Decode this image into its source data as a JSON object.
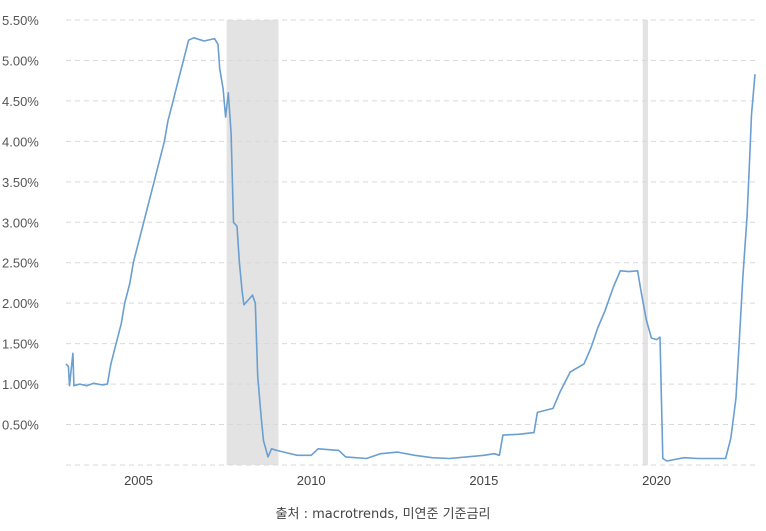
{
  "chart_data": {
    "type": "line",
    "title": "",
    "xlabel": "",
    "ylabel": "",
    "xlim": [
      2002.9,
      2022.85
    ],
    "ylim": [
      0.0,
      5.5
    ],
    "grid": true,
    "y_ticks": [
      {
        "value": 5.5,
        "label": "5.50%"
      },
      {
        "value": 5.0,
        "label": "5.00%"
      },
      {
        "value": 4.5,
        "label": "4.50%"
      },
      {
        "value": 4.0,
        "label": "4.00%"
      },
      {
        "value": 3.5,
        "label": "3.50%"
      },
      {
        "value": 3.0,
        "label": "3.00%"
      },
      {
        "value": 2.5,
        "label": "2.50%"
      },
      {
        "value": 2.0,
        "label": "2.00%"
      },
      {
        "value": 1.5,
        "label": "1.50%"
      },
      {
        "value": 1.0,
        "label": "1.00%"
      },
      {
        "value": 0.5,
        "label": "0.50%"
      }
    ],
    "x_ticks": [
      {
        "value": 2005,
        "label": "2005"
      },
      {
        "value": 2010,
        "label": "2010"
      },
      {
        "value": 2015,
        "label": "2015"
      },
      {
        "value": 2020,
        "label": "2020"
      }
    ],
    "recession_bands": [
      {
        "start": 2007.55,
        "end": 2009.05
      },
      {
        "start": 2019.6,
        "end": 2019.75
      }
    ],
    "series": [
      {
        "color": "#6a9fd0",
        "points": [
          [
            2002.9,
            1.25
          ],
          [
            2002.97,
            1.22
          ],
          [
            2003.0,
            0.98
          ],
          [
            2003.1,
            1.38
          ],
          [
            2003.13,
            0.98
          ],
          [
            2003.3,
            1.0
          ],
          [
            2003.5,
            0.98
          ],
          [
            2003.7,
            1.01
          ],
          [
            2003.95,
            0.99
          ],
          [
            2004.1,
            1.0
          ],
          [
            2004.2,
            1.25
          ],
          [
            2004.35,
            1.5
          ],
          [
            2004.5,
            1.75
          ],
          [
            2004.6,
            2.0
          ],
          [
            2004.75,
            2.25
          ],
          [
            2004.85,
            2.5
          ],
          [
            2005.0,
            2.75
          ],
          [
            2005.15,
            3.0
          ],
          [
            2005.3,
            3.25
          ],
          [
            2005.45,
            3.5
          ],
          [
            2005.6,
            3.75
          ],
          [
            2005.75,
            4.0
          ],
          [
            2005.85,
            4.25
          ],
          [
            2006.0,
            4.5
          ],
          [
            2006.15,
            4.75
          ],
          [
            2006.3,
            5.0
          ],
          [
            2006.45,
            5.25
          ],
          [
            2006.6,
            5.28
          ],
          [
            2006.9,
            5.24
          ],
          [
            2007.2,
            5.27
          ],
          [
            2007.3,
            5.2
          ],
          [
            2007.35,
            4.9
          ],
          [
            2007.45,
            4.65
          ],
          [
            2007.52,
            4.3
          ],
          [
            2007.6,
            4.6
          ],
          [
            2007.68,
            4.1
          ],
          [
            2007.75,
            3.0
          ],
          [
            2007.85,
            2.95
          ],
          [
            2007.92,
            2.5
          ],
          [
            2008.0,
            2.15
          ],
          [
            2008.05,
            1.98
          ],
          [
            2008.2,
            2.05
          ],
          [
            2008.3,
            2.1
          ],
          [
            2008.38,
            2.0
          ],
          [
            2008.45,
            1.1
          ],
          [
            2008.55,
            0.6
          ],
          [
            2008.62,
            0.3
          ],
          [
            2008.75,
            0.1
          ],
          [
            2008.85,
            0.2
          ],
          [
            2009.0,
            0.18
          ],
          [
            2009.3,
            0.15
          ],
          [
            2009.6,
            0.12
          ],
          [
            2010.0,
            0.12
          ],
          [
            2010.2,
            0.2
          ],
          [
            2010.8,
            0.18
          ],
          [
            2011.0,
            0.1
          ],
          [
            2011.6,
            0.08
          ],
          [
            2012.0,
            0.14
          ],
          [
            2012.5,
            0.16
          ],
          [
            2013.0,
            0.12
          ],
          [
            2013.5,
            0.09
          ],
          [
            2014.0,
            0.08
          ],
          [
            2014.5,
            0.1
          ],
          [
            2015.0,
            0.12
          ],
          [
            2015.3,
            0.14
          ],
          [
            2015.45,
            0.12
          ],
          [
            2015.55,
            0.37
          ],
          [
            2016.0,
            0.38
          ],
          [
            2016.45,
            0.4
          ],
          [
            2016.55,
            0.65
          ],
          [
            2017.0,
            0.7
          ],
          [
            2017.2,
            0.9
          ],
          [
            2017.5,
            1.15
          ],
          [
            2017.9,
            1.25
          ],
          [
            2018.1,
            1.45
          ],
          [
            2018.3,
            1.7
          ],
          [
            2018.5,
            1.9
          ],
          [
            2018.75,
            2.2
          ],
          [
            2018.95,
            2.4
          ],
          [
            2019.2,
            2.39
          ],
          [
            2019.45,
            2.4
          ],
          [
            2019.55,
            2.15
          ],
          [
            2019.7,
            1.8
          ],
          [
            2019.85,
            1.57
          ],
          [
            2020.0,
            1.55
          ],
          [
            2020.1,
            1.58
          ],
          [
            2020.18,
            0.08
          ],
          [
            2020.3,
            0.05
          ],
          [
            2020.8,
            0.09
          ],
          [
            2021.2,
            0.08
          ],
          [
            2021.8,
            0.08
          ],
          [
            2022.0,
            0.08
          ],
          [
            2022.15,
            0.33
          ],
          [
            2022.3,
            0.83
          ],
          [
            2022.4,
            1.58
          ],
          [
            2022.5,
            2.33
          ],
          [
            2022.62,
            3.08
          ],
          [
            2022.7,
            3.83
          ],
          [
            2022.75,
            4.33
          ],
          [
            2022.85,
            4.83
          ]
        ]
      }
    ]
  },
  "source_text": "출처 : macrotrends, 미연준 기준금리"
}
